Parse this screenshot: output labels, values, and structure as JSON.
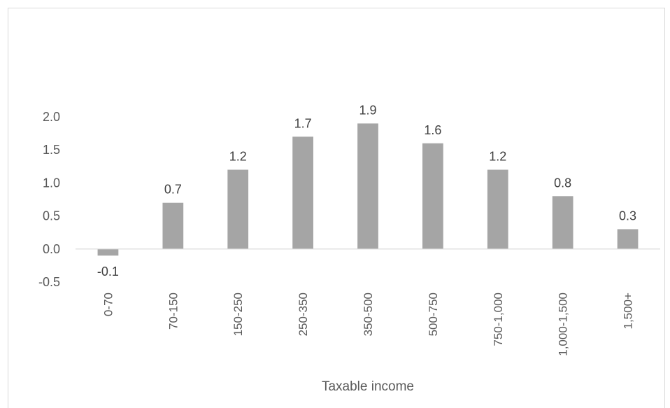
{
  "chart_data": {
    "type": "bar",
    "title": "",
    "xlabel": "Taxable income",
    "ylabel": "",
    "categories": [
      "0-70",
      "70-150",
      "150-250",
      "250-350",
      "350-500",
      "500-750",
      "750-1,000",
      "1,000-1,500",
      "1,500+"
    ],
    "values": [
      -0.1,
      0.7,
      1.2,
      1.7,
      1.9,
      1.6,
      1.2,
      0.8,
      0.3
    ],
    "data_labels": [
      "-0.1",
      "0.7",
      "1.2",
      "1.7",
      "1.9",
      "1.6",
      "1.2",
      "0.8",
      "0.3"
    ],
    "yticks": [
      "2.0",
      "1.5",
      "1.0",
      "0.5",
      "0.0",
      "-0.5"
    ],
    "ylim": [
      -0.5,
      2.0
    ],
    "grid": false,
    "legend": "none",
    "bar_color": "#a5a5a5",
    "axis_color": "#d9d9d9"
  }
}
